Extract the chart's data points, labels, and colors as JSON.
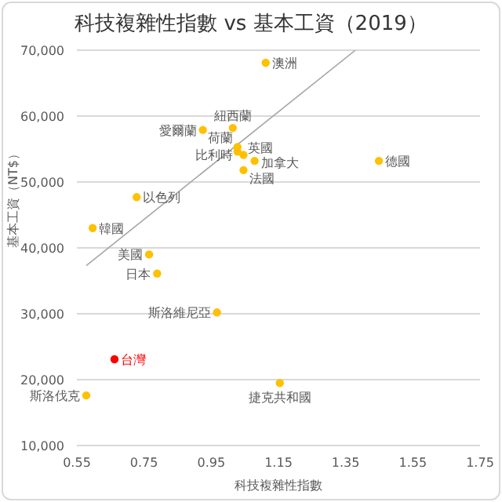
{
  "chart_data": {
    "type": "scatter",
    "title": "科技複雜性指數 vs 基本工資（2019）",
    "xlabel": "科技複雜性指數",
    "ylabel": "基本工資（NT$）",
    "x": [
      1.112,
      1.014,
      0.925,
      1.028,
      1.028,
      1.046,
      1.079,
      1.046,
      1.449,
      0.728,
      0.597,
      0.765,
      0.789,
      0.967,
      0.662,
      0.578,
      1.154
    ],
    "series": [
      {
        "values": [
          68100,
          58200,
          57900,
          55300,
          54600,
          54100,
          53200,
          51800,
          53200,
          47700,
          43000,
          39000,
          36100,
          30200,
          23100,
          17600,
          19500
        ],
        "colors": [
          "#ffc000",
          "#ffc000",
          "#ffc000",
          "#ffc000",
          "#ffc000",
          "#ffc000",
          "#ffc000",
          "#ffc000",
          "#ffc000",
          "#ffc000",
          "#ffc000",
          "#ffc000",
          "#ffc000",
          "#ffc000",
          "#ff0000",
          "#ffc000",
          "#ffc000"
        ]
      },
      {
        "type": "line",
        "x": [
          0.578,
          1.379
        ],
        "values": [
          37300,
          70000
        ],
        "color": "#a6a6a6",
        "marker": "none"
      }
    ],
    "annotations": [
      {
        "text": "澳洲",
        "x": 1.112,
        "y": 68100
      },
      {
        "text": "紐西蘭",
        "x": 1.014,
        "y": 58200
      },
      {
        "text": "愛爾蘭",
        "x": 0.925,
        "y": 57900
      },
      {
        "text": "荷蘭",
        "x": 1.028,
        "y": 55300
      },
      {
        "text": "比利時",
        "x": 1.028,
        "y": 54600
      },
      {
        "text": "英國",
        "x": 1.046,
        "y": 54100
      },
      {
        "text": "加拿大",
        "x": 1.079,
        "y": 53200
      },
      {
        "text": "法國",
        "x": 1.046,
        "y": 51800
      },
      {
        "text": "德國",
        "x": 1.449,
        "y": 53200
      },
      {
        "text": "以色列",
        "x": 0.728,
        "y": 47700
      },
      {
        "text": "韓國",
        "x": 0.597,
        "y": 43000
      },
      {
        "text": "美國",
        "x": 0.765,
        "y": 39000
      },
      {
        "text": "日本",
        "x": 0.789,
        "y": 36100
      },
      {
        "text": "斯洛維尼亞",
        "x": 0.967,
        "y": 30200
      },
      {
        "text": "台灣",
        "x": 0.662,
        "y": 23100
      },
      {
        "text": "斯洛伐克",
        "x": 0.578,
        "y": 17600
      },
      {
        "text": "捷克共和國",
        "x": 1.154,
        "y": 19500
      }
    ],
    "xlim": [
      0.55,
      1.75
    ],
    "xticks": [
      0.55,
      0.75,
      0.95,
      1.15,
      1.35,
      1.55,
      1.75
    ],
    "ylim": [
      10000,
      70000
    ],
    "yticks": [
      {
        "value": 10000,
        "label": "10,000"
      },
      {
        "value": 20000,
        "label": "20,000"
      },
      {
        "value": 30000,
        "label": "30,000"
      },
      {
        "value": 40000,
        "label": "40,000"
      },
      {
        "value": 50000,
        "label": "50,000"
      },
      {
        "value": 60000,
        "label": "60,000"
      },
      {
        "value": 70000,
        "label": "70,000"
      }
    ],
    "grid": "y",
    "legend": false,
    "marker": "circle"
  }
}
